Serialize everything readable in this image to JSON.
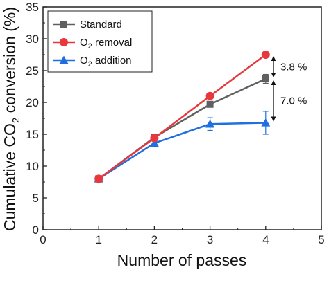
{
  "chart_data": {
    "type": "line",
    "xlabel": "Number of passes",
    "ylabel_main": "Cumulative CO",
    "ylabel_sub": "2",
    "ylabel_tail": " conversion (%)",
    "xlim": [
      0,
      5
    ],
    "ylim": [
      0,
      35
    ],
    "x_ticks": [
      0,
      1,
      2,
      3,
      4,
      5
    ],
    "y_ticks": [
      0,
      5,
      10,
      15,
      20,
      25,
      30,
      35
    ],
    "grid": false,
    "legend_position": "top-left",
    "x": [
      1,
      2,
      3,
      4
    ],
    "series": [
      {
        "key": "standard",
        "label_main": "Standard",
        "label_sub": "",
        "label_tail": "",
        "marker": "square",
        "color": "#606060",
        "values": [
          8.0,
          14.5,
          19.7,
          23.7
        ],
        "errors": [
          0,
          0.2,
          0.3,
          0.7
        ]
      },
      {
        "key": "o2-removal",
        "label_main": "O",
        "label_sub": "2",
        "label_tail": " removal",
        "marker": "circle",
        "color": "#e8383d",
        "values": [
          8.0,
          14.4,
          21.0,
          27.5
        ],
        "errors": [
          0,
          0,
          0,
          0
        ]
      },
      {
        "key": "o2-addition",
        "label_main": "O",
        "label_sub": "2",
        "label_tail": " addition",
        "marker": "triangle",
        "color": "#1f6fe0",
        "values": [
          8.0,
          13.6,
          16.6,
          16.8
        ],
        "errors": [
          0,
          0.3,
          1.0,
          1.8
        ]
      }
    ],
    "annotations": [
      {
        "text": "3.8 %",
        "y_from": 23.7,
        "y_to": 27.5
      },
      {
        "text": "7.0 %",
        "y_from": 16.8,
        "y_to": 23.7
      }
    ]
  }
}
